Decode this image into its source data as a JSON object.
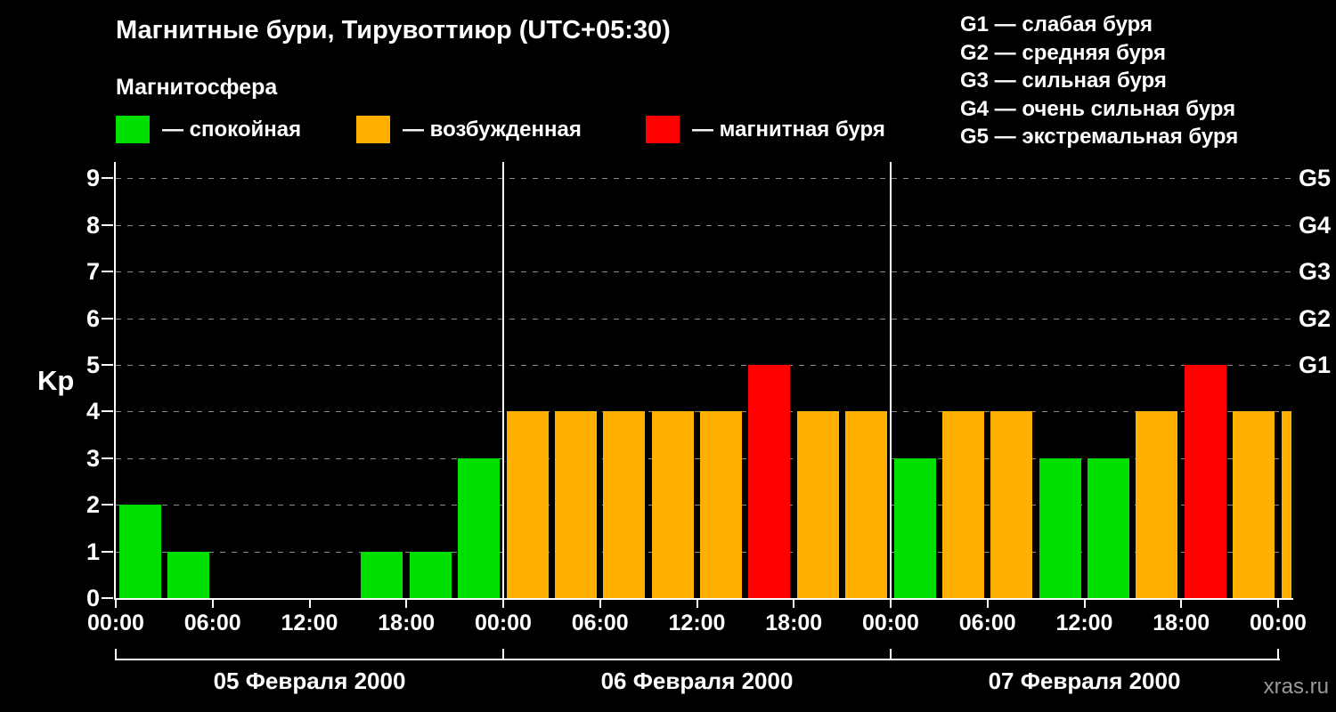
{
  "header": {
    "title": "Магнитные бури, Тирувоттиюр (UTC+05:30)",
    "subtitle": "Магнитосфера"
  },
  "legend": {
    "items": [
      {
        "label": "— спокойная",
        "color": "#00e000",
        "meaning": "quiet"
      },
      {
        "label": "— возбужденная",
        "color": "#ffb000",
        "meaning": "excited"
      },
      {
        "label": "— магнитная буря",
        "color": "#ff0000",
        "meaning": "storm"
      }
    ]
  },
  "storm_scale": {
    "items": [
      "G1 — слабая буря",
      "G2 — средняя буря",
      "G3 — сильная буря",
      "G4 — очень сильная буря",
      "G5 — экстремальная буря"
    ]
  },
  "footer": {
    "watermark": "xras.ru"
  },
  "chart_data": {
    "type": "bar",
    "ylabel": "Kp",
    "ylim": [
      0,
      9
    ],
    "yticks": [
      0,
      1,
      2,
      3,
      4,
      5,
      6,
      7,
      8,
      9
    ],
    "grid": true,
    "legend_position": "top",
    "right_axis_labels": [
      {
        "kp": 5,
        "label": "G1"
      },
      {
        "kp": 6,
        "label": "G2"
      },
      {
        "kp": 7,
        "label": "G3"
      },
      {
        "kp": 8,
        "label": "G4"
      },
      {
        "kp": 9,
        "label": "G5"
      }
    ],
    "x_tick_labels": [
      "00:00",
      "06:00",
      "12:00",
      "18:00",
      "00:00",
      "06:00",
      "12:00",
      "18:00",
      "00:00",
      "06:00",
      "12:00",
      "18:00",
      "00:00"
    ],
    "interval_hours": 3,
    "days": [
      {
        "date": "05 Февраля 2000",
        "kp_values": [
          2,
          1,
          0,
          0,
          0,
          1,
          1,
          3
        ]
      },
      {
        "date": "06 Февраля 2000",
        "kp_values": [
          4,
          4,
          4,
          4,
          4,
          5,
          4,
          4
        ]
      },
      {
        "date": "07 Февраля 2000",
        "kp_values": [
          3,
          4,
          4,
          3,
          3,
          4,
          5,
          4
        ]
      }
    ],
    "next_day_partial_kp": 4,
    "colors": {
      "quiet": "#00e000",
      "excited": "#ffb000",
      "storm": "#ff0000",
      "grid": "#8a8a8a"
    },
    "color_rule": {
      "quiet_kp_max": 3,
      "storm_kp_min": 5
    }
  }
}
